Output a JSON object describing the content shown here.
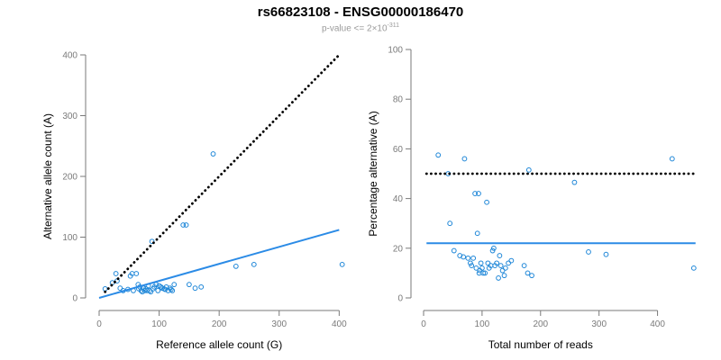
{
  "title": "rs66823108 - ENSG00000186470",
  "subtitle": {
    "prefix": "p-value <= 2×10",
    "exponent": "-311"
  },
  "colors": {
    "points": "#1f87d8",
    "fit_line": "#2b8be6",
    "expected_line": "#000000",
    "axis": "#7a7a7a"
  },
  "chart_data": [
    {
      "type": "scatter",
      "xlabel": "Reference allele count (G)",
      "ylabel": "Alternative allele count (A)",
      "xlim": [
        0,
        410
      ],
      "ylim": [
        0,
        400
      ],
      "xticks": [
        0,
        100,
        200,
        300,
        400
      ],
      "yticks": [
        0,
        100,
        200,
        300,
        400
      ],
      "grid": false,
      "points": {
        "x": [
          10,
          22,
          28,
          30,
          35,
          40,
          48,
          52,
          55,
          57,
          62,
          65,
          66,
          68,
          70,
          72,
          74,
          76,
          78,
          80,
          82,
          84,
          86,
          88,
          90,
          92,
          95,
          98,
          100,
          103,
          105,
          108,
          110,
          112,
          115,
          118,
          120,
          122,
          125,
          140,
          150,
          160,
          170,
          190,
          145,
          228,
          258,
          405
        ],
        "y": [
          15,
          25,
          40,
          28,
          16,
          12,
          14,
          36,
          40,
          12,
          40,
          22,
          15,
          18,
          12,
          10,
          16,
          12,
          15,
          12,
          20,
          12,
          10,
          93,
          15,
          18,
          22,
          12,
          20,
          18,
          16,
          15,
          14,
          18,
          12,
          16,
          14,
          12,
          22,
          120,
          22,
          16,
          18,
          237,
          120,
          52,
          55,
          55
        ]
      },
      "lines": [
        {
          "kind": "expected",
          "style": "dotted",
          "x": [
            10,
            400
          ],
          "y": [
            10,
            400
          ]
        },
        {
          "kind": "fit",
          "style": "solid",
          "x": [
            0,
            400
          ],
          "y": [
            0,
            112
          ]
        }
      ]
    },
    {
      "type": "scatter",
      "xlabel": "Total number of reads",
      "ylabel": "Percentage alternative (A)",
      "xlim": [
        0,
        470
      ],
      "ylim": [
        0,
        100
      ],
      "xticks": [
        0,
        100,
        200,
        300,
        400
      ],
      "yticks": [
        0,
        20,
        40,
        60,
        80,
        100
      ],
      "grid": false,
      "points": {
        "x": [
          25,
          42,
          45,
          52,
          62,
          68,
          70,
          76,
          80,
          82,
          85,
          88,
          90,
          92,
          94,
          95,
          96,
          98,
          100,
          102,
          105,
          108,
          110,
          112,
          115,
          118,
          120,
          122,
          125,
          128,
          130,
          132,
          135,
          138,
          140,
          145,
          150,
          172,
          178,
          185,
          180,
          258,
          282,
          312,
          425,
          462
        ],
        "y": [
          57.5,
          50,
          30,
          19,
          17,
          16.5,
          56,
          16,
          14,
          13,
          16,
          42,
          12,
          26,
          42,
          10,
          11,
          14,
          12,
          10,
          10,
          38.5,
          14,
          12,
          13,
          19,
          20,
          13,
          14,
          8,
          17,
          13,
          11,
          9,
          12,
          14,
          15,
          13,
          10,
          9,
          51.5,
          46.5,
          18.5,
          17.5,
          56,
          12
        ]
      },
      "lines": [
        {
          "kind": "expected",
          "style": "dotted",
          "x": [
            5,
            465
          ],
          "y": [
            50,
            50
          ]
        },
        {
          "kind": "fit",
          "style": "solid",
          "x": [
            5,
            465
          ],
          "y": [
            22,
            22
          ]
        }
      ]
    }
  ]
}
